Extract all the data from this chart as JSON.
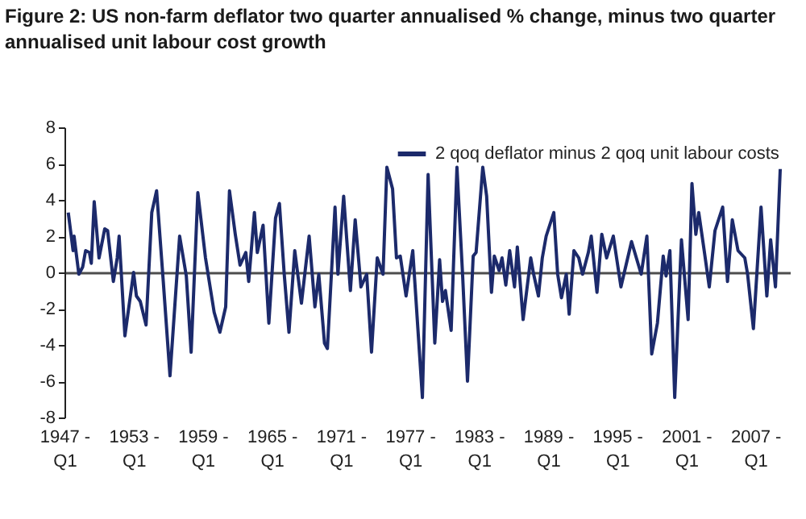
{
  "chart_data": {
    "type": "line",
    "title": "Figure 2: US non-farm deflator two quarter annualised % change, minus two quarter annualised unit labour cost growth",
    "x": [
      "1947-05",
      "1947-10",
      "1947-11",
      "1948-04",
      "1948-08",
      "1948-11",
      "1949-03",
      "1949-05",
      "1949-08",
      "1950-01",
      "1950-07",
      "1950-10",
      "1951-04",
      "1951-08",
      "1951-10",
      "1952-04",
      "1953-01",
      "1953-04",
      "1953-08",
      "1954-02",
      "1954-08",
      "1955-01",
      "1955-08",
      "1956-03",
      "1957-01",
      "1957-08",
      "1958-01",
      "1958-08",
      "1959-04",
      "1960-01",
      "1960-07",
      "1961-01",
      "1961-05",
      "1961-11",
      "1962-04",
      "1962-10",
      "1963-01",
      "1963-07",
      "1963-10",
      "1964-04",
      "1964-10",
      "1965-05",
      "1965-09",
      "1966-02",
      "1966-07",
      "1967-01",
      "1967-08",
      "1968-04",
      "1968-10",
      "1969-02",
      "1969-08",
      "1969-11",
      "1970-07",
      "1970-10",
      "1971-04",
      "1971-11",
      "1972-04",
      "1972-10",
      "1973-04",
      "1973-09",
      "1974-03",
      "1974-09",
      "1975-01",
      "1975-07",
      "1975-11",
      "1976-03",
      "1976-09",
      "1977-04",
      "1978-02",
      "1978-08",
      "1979-03",
      "1979-08",
      "1979-11",
      "1980-02",
      "1980-08",
      "1981-02",
      "1981-08",
      "1982-01",
      "1982-07",
      "1982-10",
      "1983-05",
      "1983-09",
      "1984-02",
      "1984-05",
      "1984-10",
      "1985-01",
      "1985-05",
      "1985-09",
      "1986-02",
      "1986-05",
      "1986-11",
      "1987-07",
      "1987-10",
      "1988-03",
      "1988-07",
      "1988-11",
      "1989-07",
      "1989-11",
      "1990-03",
      "1990-08",
      "1990-11",
      "1991-04",
      "1991-09",
      "1992-01",
      "1992-07",
      "1992-10",
      "1993-04",
      "1993-09",
      "1994-02",
      "1994-09",
      "1995-05",
      "1996-04",
      "1997-02",
      "1997-08",
      "1998-01",
      "1998-07",
      "1999-01",
      "1999-04",
      "1999-08",
      "2000-01",
      "2000-08",
      "2001-03",
      "2001-07",
      "2001-11",
      "2002-02",
      "2002-08",
      "2003-01",
      "2003-07",
      "2004-03",
      "2004-08",
      "2005-01",
      "2005-07",
      "2006-02",
      "2006-05",
      "2006-11",
      "2007-07",
      "2008-01",
      "2008-05",
      "2008-10",
      "2009-03"
    ],
    "series": [
      {
        "name": "2 qoq deflator minus 2 qoq unit labour costs",
        "color": "#1c2a6b",
        "values": [
          3.3,
          1.2,
          2.0,
          -0.1,
          0.3,
          1.2,
          1.1,
          0.5,
          3.9,
          0.8,
          2.4,
          2.3,
          -0.5,
          0.8,
          2.0,
          -3.5,
          0.0,
          -1.3,
          -1.6,
          -2.9,
          3.3,
          4.5,
          -0.5,
          -5.7,
          2.0,
          -0.2,
          -4.4,
          4.4,
          0.8,
          -2.2,
          -3.3,
          -1.9,
          4.5,
          2.1,
          0.4,
          1.1,
          -0.5,
          3.3,
          1.1,
          2.6,
          -2.8,
          3.0,
          3.8,
          -0.1,
          -3.3,
          1.2,
          -1.7,
          2.0,
          -1.9,
          -0.1,
          -3.9,
          -4.2,
          3.6,
          -0.1,
          4.2,
          -1.0,
          2.9,
          -0.8,
          -0.1,
          -4.4,
          0.8,
          -0.1,
          5.8,
          4.6,
          0.8,
          0.9,
          -1.3,
          1.2,
          -6.9,
          5.4,
          -3.9,
          0.7,
          -1.6,
          -1.0,
          -3.2,
          5.8,
          -0.2,
          -6.0,
          0.9,
          1.1,
          5.8,
          4.2,
          -1.1,
          0.9,
          0.1,
          0.8,
          -0.7,
          1.2,
          -0.8,
          1.4,
          -2.6,
          0.8,
          -0.1,
          -1.3,
          0.8,
          2.0,
          3.3,
          -0.1,
          -1.4,
          -0.1,
          -2.3,
          1.2,
          0.8,
          -0.1,
          1.1,
          2.0,
          -1.1,
          2.1,
          0.8,
          2.0,
          -0.8,
          1.7,
          -0.1,
          2.0,
          -4.5,
          -2.8,
          0.9,
          -0.2,
          1.2,
          -6.9,
          1.8,
          -2.6,
          4.9,
          2.1,
          3.3,
          1.1,
          -0.8,
          2.3,
          3.6,
          -0.5,
          2.9,
          1.2,
          0.8,
          -0.1,
          -3.1,
          3.6,
          -1.3,
          1.8,
          -0.8,
          5.7
        ]
      }
    ],
    "xlim": [
      "1947-01",
      "2010-01"
    ],
    "xticks": [
      {
        "value": "1947-01",
        "label": "1947 - Q1"
      },
      {
        "value": "1953-01",
        "label": "1953 - Q1"
      },
      {
        "value": "1959-01",
        "label": "1959 - Q1"
      },
      {
        "value": "1965-01",
        "label": "1965 - Q1"
      },
      {
        "value": "1971-01",
        "label": "1971 - Q1"
      },
      {
        "value": "1977-01",
        "label": "1977 - Q1"
      },
      {
        "value": "1983-01",
        "label": "1983 - Q1"
      },
      {
        "value": "1989-01",
        "label": "1989 - Q1"
      },
      {
        "value": "1995-01",
        "label": "1995 - Q1"
      },
      {
        "value": "2001-01",
        "label": "2001 - Q1"
      },
      {
        "value": "2007-01",
        "label": "2007 - Q1"
      }
    ],
    "ylim": [
      -8,
      8
    ],
    "yticks": [
      -8,
      -6,
      -4,
      -2,
      0,
      2,
      4,
      6,
      8
    ],
    "legend": "top right"
  }
}
